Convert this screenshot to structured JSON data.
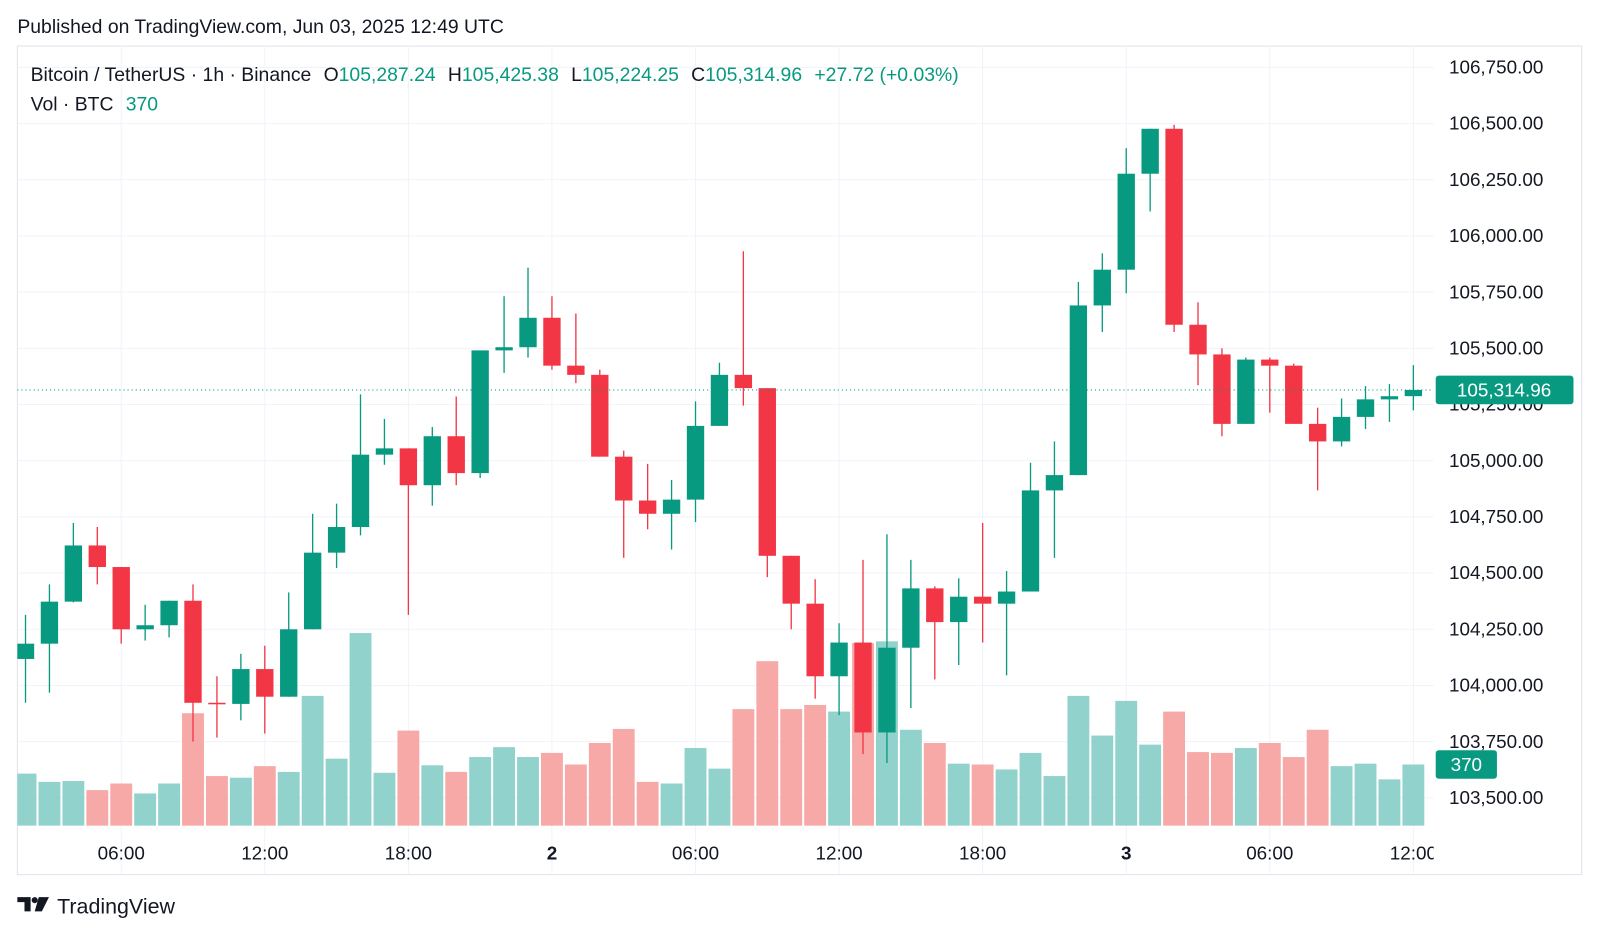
{
  "header": {
    "published": "Published on TradingView.com, Jun 03, 2025 12:49 UTC"
  },
  "footer": {
    "brand": "TradingView"
  },
  "chart_data": {
    "type": "candlestick",
    "legend": {
      "symbol": "Bitcoin / TetherUS · 1h · Binance",
      "items": [
        {
          "key": "O",
          "value": "105,287.24"
        },
        {
          "key": "H",
          "value": "105,425.38"
        },
        {
          "key": "L",
          "value": "105,224.25"
        },
        {
          "key": "C",
          "value": "105,314.96"
        }
      ],
      "change": "+27.72 (+0.03%)",
      "volume_title": "Vol · BTC"
    },
    "categories": [
      null,
      null,
      null,
      null,
      "06:00",
      null,
      null,
      null,
      null,
      null,
      "12:00",
      null,
      null,
      null,
      null,
      null,
      "18:00",
      null,
      null,
      null,
      null,
      null,
      "2",
      null,
      null,
      null,
      null,
      null,
      "06:00",
      null,
      null,
      null,
      null,
      null,
      "12:00",
      null,
      null,
      null,
      null,
      null,
      "18:00",
      null,
      null,
      null,
      null,
      null,
      "3",
      null,
      null,
      null,
      null,
      null,
      "06:00",
      null,
      null,
      null,
      null,
      null,
      "12:00"
    ],
    "open": [
      104118,
      104186,
      104373,
      104623,
      104527,
      104250,
      104268,
      104377,
      103923,
      103918,
      104073,
      103950,
      104250,
      104591,
      104705,
      105027,
      105055,
      104891,
      105109,
      104945,
      105491,
      105505,
      105636,
      105423,
      105382,
      105018,
      104823,
      104764,
      104827,
      105155,
      105382,
      105323,
      104577,
      104364,
      104041,
      104191,
      103791,
      104168,
      104432,
      104282,
      104395,
      104364,
      104418,
      104868,
      104936,
      105691,
      105850,
      106277,
      106477,
      105605,
      105473,
      105164,
      105450,
      105423,
      105164,
      105086,
      105195,
      105273,
      105287.24
    ],
    "high": [
      104314,
      104450,
      104723,
      104705,
      104527,
      104359,
      104377,
      104450,
      104041,
      104141,
      104177,
      104414,
      104764,
      104809,
      105295,
      105186,
      105055,
      105150,
      105286,
      105491,
      105732,
      105859,
      105732,
      105655,
      105405,
      105045,
      104986,
      104914,
      105264,
      105436,
      105932,
      105323,
      104577,
      104473,
      104277,
      104559,
      104673,
      104559,
      104441,
      104477,
      104723,
      104509,
      104991,
      105086,
      105795,
      105923,
      106391,
      106477,
      106495,
      105705,
      105500,
      105459,
      105459,
      105432,
      105236,
      105277,
      105332,
      105341,
      105425.38
    ],
    "low": [
      103923,
      103968,
      104370,
      104450,
      104186,
      104200,
      104214,
      103750,
      103768,
      103845,
      103786,
      103950,
      104250,
      104523,
      104668,
      104982,
      104314,
      104800,
      104891,
      104923,
      105391,
      105459,
      105405,
      105345,
      105018,
      104568,
      104695,
      104605,
      104727,
      105155,
      105245,
      104482,
      104250,
      103941,
      103868,
      103695,
      103655,
      103900,
      104027,
      104091,
      104191,
      104045,
      104418,
      104568,
      104936,
      105573,
      105745,
      106109,
      105573,
      105336,
      105109,
      105164,
      105214,
      105164,
      104868,
      105064,
      105141,
      105173,
      105224.25
    ],
    "close": [
      104186,
      104373,
      104623,
      104527,
      104250,
      104268,
      104377,
      103923,
      103918,
      104073,
      103950,
      104250,
      104591,
      104705,
      105027,
      105055,
      104891,
      105109,
      104945,
      105491,
      105505,
      105636,
      105423,
      105382,
      105018,
      104823,
      104764,
      104827,
      105155,
      105382,
      105323,
      104577,
      104364,
      104041,
      104191,
      103791,
      104168,
      104432,
      104282,
      104395,
      104364,
      104418,
      104868,
      104936,
      105691,
      105850,
      106277,
      106477,
      105605,
      105473,
      105164,
      105450,
      105423,
      105164,
      105086,
      105195,
      105273,
      105287,
      105314.96
    ],
    "volume": [
      315,
      265,
      270,
      215,
      255,
      195,
      255,
      680,
      300,
      290,
      360,
      325,
      785,
      405,
      1165,
      320,
      575,
      365,
      325,
      415,
      475,
      415,
      440,
      370,
      500,
      585,
      265,
      255,
      470,
      345,
      705,
      995,
      705,
      730,
      690,
      1105,
      1115,
      580,
      500,
      375,
      370,
      340,
      440,
      300,
      785,
      545,
      755,
      490,
      690,
      445,
      440,
      470,
      500,
      415,
      580,
      360,
      375,
      280,
      370
    ],
    "last_price": {
      "value": 105314.96,
      "label": "105,314.96"
    },
    "last_volume": 370,
    "colors": {
      "up": "#089981",
      "down": "#f23645",
      "volume_up": "#92d2cc",
      "volume_down": "#f7a9a7"
    },
    "ylim": [
      103340,
      106845
    ],
    "yticks": [
      {
        "value": 103500,
        "label": "103,500.00"
      },
      {
        "value": 103750,
        "label": "103,750.00"
      },
      {
        "value": 104000,
        "label": "104,000.00"
      },
      {
        "value": 104250,
        "label": "104,250.00"
      },
      {
        "value": 104500,
        "label": "104,500.00"
      },
      {
        "value": 104750,
        "label": "104,750.00"
      },
      {
        "value": 105000,
        "label": "105,000.00"
      },
      {
        "value": 105250,
        "label": "105,250.00"
      },
      {
        "value": 105500,
        "label": "105,500.00"
      },
      {
        "value": 105750,
        "label": "105,750.00"
      },
      {
        "value": 106000,
        "label": "106,000.00"
      },
      {
        "value": 106250,
        "label": "106,250.00"
      },
      {
        "value": 106500,
        "label": "106,500.00"
      },
      {
        "value": 106750,
        "label": "106,750.00"
      }
    ],
    "grid": true
  }
}
